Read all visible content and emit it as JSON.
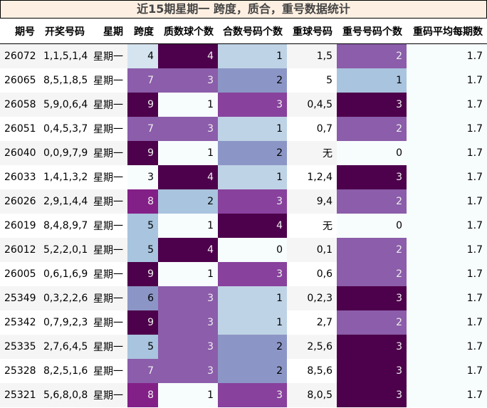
{
  "title": "近15期星期一 跨度，质合，重号数据统计",
  "headers": [
    "期号",
    "开奖号码",
    "星期",
    "跨度",
    "质数球个数",
    "合数号码个数",
    "重球号码",
    "重号号码个数",
    "重码平均每期数"
  ],
  "colormap": [
    "#f7fcfd",
    "#e0ecf4",
    "#bfd3e6",
    "#9ebcda",
    "#8c96c6",
    "#8c6bb1",
    "#88419d",
    "#810f7c",
    "#4d004b"
  ],
  "rows": [
    [
      "26072",
      "1,1,5,1,4",
      "星期一",
      "4",
      "4",
      "1",
      "1,5",
      "2",
      "1.7"
    ],
    [
      "26065",
      "8,5,1,8,5",
      "星期一",
      "7",
      "3",
      "2",
      "5",
      "1",
      "1.7"
    ],
    [
      "26058",
      "5,9,0,6,4",
      "星期一",
      "9",
      "1",
      "3",
      "0,4,5",
      "3",
      "1.7"
    ],
    [
      "26051",
      "0,4,5,3,7",
      "星期一",
      "7",
      "3",
      "1",
      "0,7",
      "2",
      "1.7"
    ],
    [
      "26040",
      "0,0,9,7,9",
      "星期一",
      "9",
      "1",
      "2",
      "无",
      "0",
      "1.7"
    ],
    [
      "26033",
      "1,4,1,3,2",
      "星期一",
      "3",
      "4",
      "1",
      "1,2,4",
      "3",
      "1.7"
    ],
    [
      "26026",
      "2,9,1,4,4",
      "星期一",
      "8",
      "2",
      "3",
      "9,4",
      "2",
      "1.7"
    ],
    [
      "26019",
      "8,4,8,9,7",
      "星期一",
      "5",
      "1",
      "4",
      "无",
      "0",
      "1.7"
    ],
    [
      "26012",
      "5,2,2,0,1",
      "星期一",
      "5",
      "4",
      "0",
      "0,1",
      "2",
      "1.7"
    ],
    [
      "26005",
      "0,6,1,6,9",
      "星期一",
      "9",
      "1",
      "3",
      "0,6",
      "2",
      "1.7"
    ],
    [
      "25349",
      "0,3,2,2,6",
      "星期一",
      "6",
      "3",
      "1",
      "0,2,3",
      "3",
      "1.7"
    ],
    [
      "25342",
      "0,7,9,2,3",
      "星期一",
      "9",
      "3",
      "1",
      "2,7",
      "2",
      "1.7"
    ],
    [
      "25335",
      "2,7,6,4,5",
      "星期一",
      "5",
      "3",
      "2",
      "2,5,6",
      "3",
      "1.7"
    ],
    [
      "25328",
      "8,2,5,1,6",
      "星期一",
      "7",
      "3",
      "2",
      "8,5,6",
      "3",
      "1.7"
    ],
    [
      "25321",
      "5,6,8,0,8",
      "星期一",
      "8",
      "1",
      "3",
      "8,0,5",
      "3",
      "1.7"
    ]
  ]
}
